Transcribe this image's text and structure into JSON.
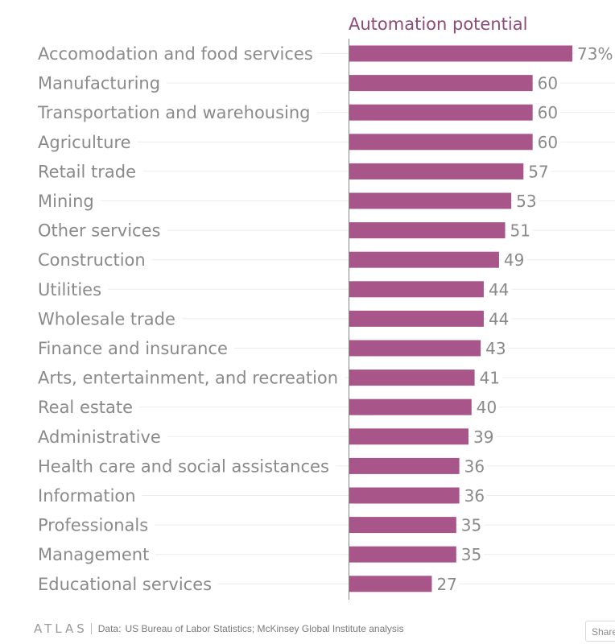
{
  "chart_data": {
    "type": "bar",
    "orientation": "horizontal",
    "column_title": "Automation potential",
    "value_suffix_first": "%",
    "bar_color": "#a8568a",
    "xlim": [
      0,
      73
    ],
    "categories": [
      "Accomodation and food services",
      "Manufacturing",
      "Transportation and warehousing",
      "Agriculture",
      "Retail trade",
      "Mining",
      "Other services",
      "Construction",
      "Utilities",
      "Wholesale trade",
      "Finance and insurance",
      "Arts, entertainment, and recreation",
      "Real estate",
      "Administrative",
      "Health care and social assistances",
      "Information",
      "Professionals",
      "Management",
      "Educational services"
    ],
    "values": [
      73,
      60,
      60,
      60,
      57,
      53,
      51,
      49,
      44,
      44,
      43,
      41,
      40,
      39,
      36,
      36,
      35,
      35,
      27
    ],
    "grid": true
  },
  "footer": {
    "logo": "ATLAS",
    "source_prefix": "Data:",
    "source_text": "US Bureau of Labor Statistics; McKinsey Global Institute analysis"
  },
  "share_button": {
    "label": "Share"
  }
}
